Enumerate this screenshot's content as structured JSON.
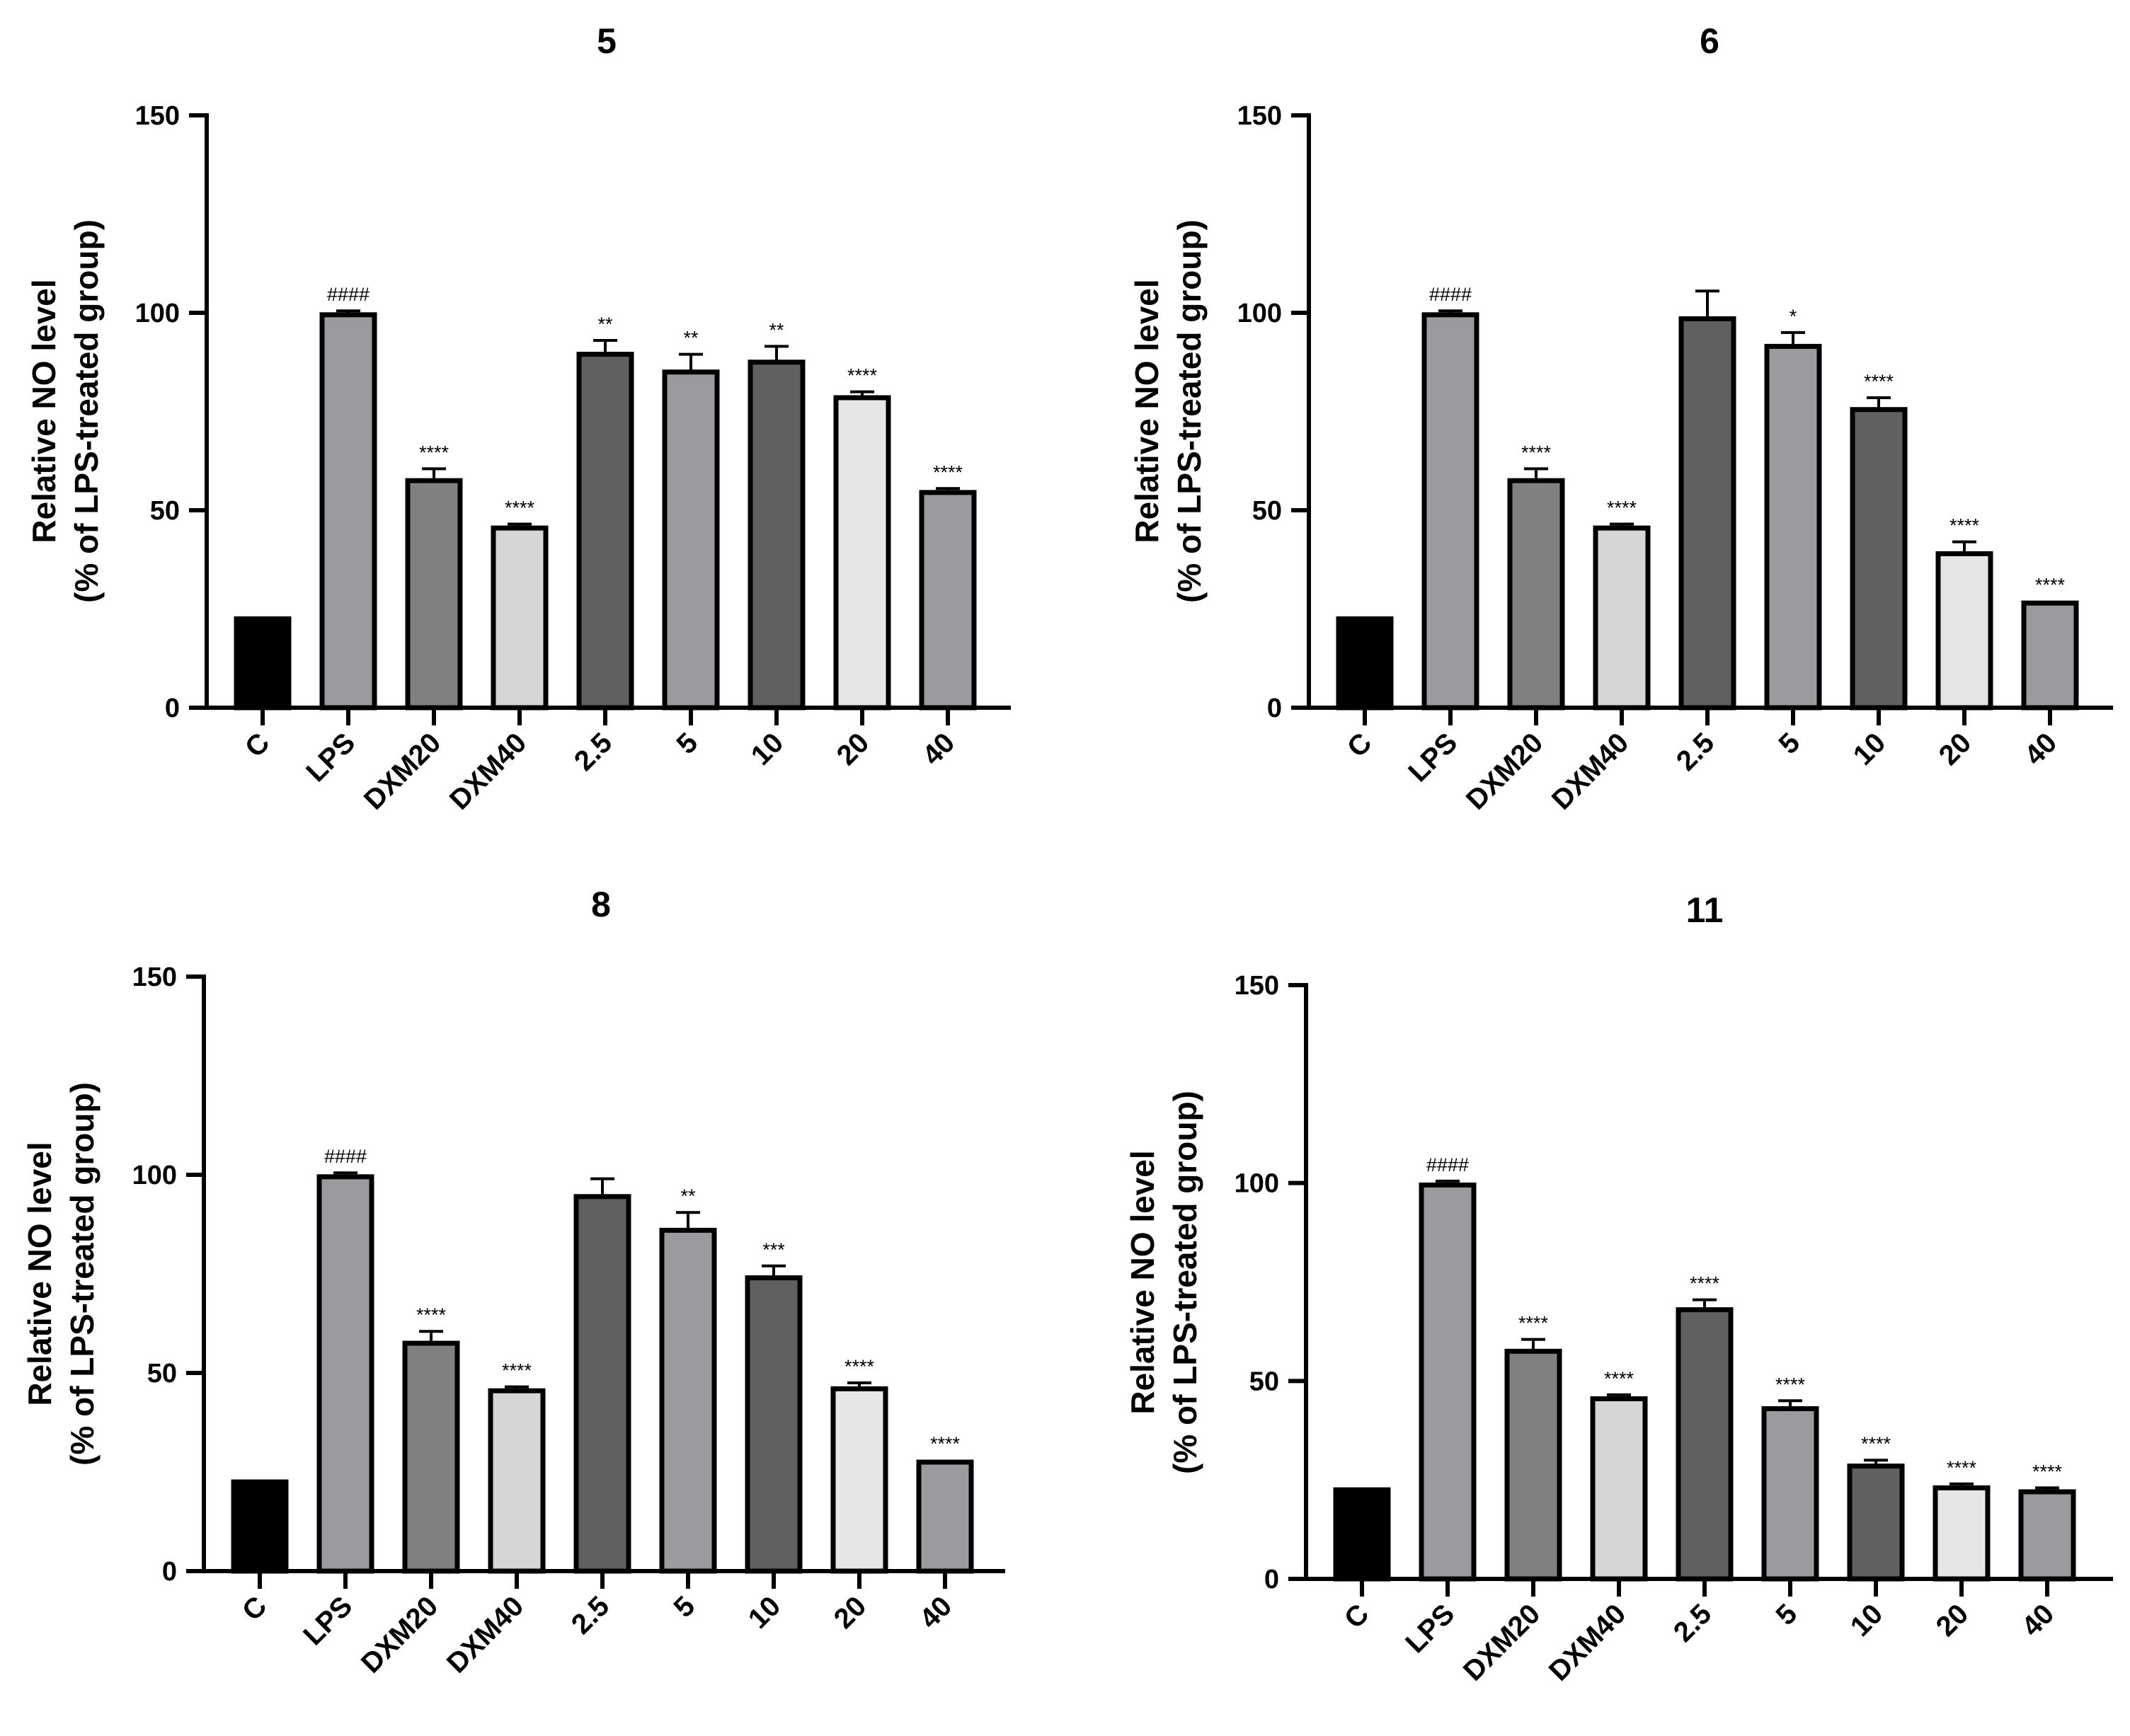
{
  "figure": {
    "colors": {
      "black": "#000000",
      "mid_gray": "#9b9b9f",
      "gray": "#808080",
      "light_gray": "#d6d6d6",
      "dark_gray": "#606060",
      "very_light_gray": "#e6e6e6"
    }
  },
  "chart_data": [
    {
      "type": "bar",
      "title": "5",
      "xlabel": "",
      "ylabel_line1": "Relative NO level",
      "ylabel_line2": "(% of LPS-treated group)",
      "ylim": [
        0,
        150
      ],
      "yticks": [
        "0",
        "50",
        "100",
        "150"
      ],
      "categories": [
        "C",
        "LPS",
        "DXM20",
        "DXM40",
        "2.5",
        "5",
        "10",
        "20",
        "40"
      ],
      "values": [
        22.5,
        99.5,
        57.5,
        45.5,
        89.5,
        85,
        87.5,
        78.5,
        54.5
      ],
      "errors": [
        0.5,
        1,
        3,
        1,
        3.5,
        4.5,
        4,
        1.5,
        1
      ],
      "significance": [
        "",
        "####",
        "****",
        "****",
        "**",
        "**",
        "**",
        "****",
        "****"
      ],
      "bar_colors": [
        "black",
        "mid_gray",
        "gray",
        "light_gray",
        "dark_gray",
        "mid_gray",
        "dark_gray",
        "very_light_gray",
        "mid_gray"
      ]
    },
    {
      "type": "bar",
      "title": "6",
      "xlabel": "",
      "ylabel_line1": "Relative NO level",
      "ylabel_line2": "(% of LPS-treated group)",
      "ylim": [
        0,
        150
      ],
      "yticks": [
        "0",
        "50",
        "100",
        "150"
      ],
      "categories": [
        "C",
        "LPS",
        "DXM20",
        "DXM40",
        "2.5",
        "5",
        "10",
        "20",
        "40"
      ],
      "values": [
        22.5,
        99.5,
        57.5,
        45.5,
        98.5,
        91.5,
        75.5,
        39,
        26.5
      ],
      "errors": [
        0.5,
        1,
        3,
        1,
        7,
        3.5,
        3,
        3,
        0.5
      ],
      "significance": [
        "",
        "####",
        "****",
        "****",
        "",
        "*",
        "****",
        "****",
        "****"
      ],
      "bar_colors": [
        "black",
        "mid_gray",
        "gray",
        "light_gray",
        "dark_gray",
        "mid_gray",
        "dark_gray",
        "very_light_gray",
        "mid_gray"
      ]
    },
    {
      "type": "bar",
      "title": "8",
      "xlabel": "",
      "ylabel_line1": "Relative NO level",
      "ylabel_line2": "(% of LPS-treated group)",
      "ylim": [
        0,
        150
      ],
      "yticks": [
        "0",
        "50",
        "100",
        "150"
      ],
      "categories": [
        "C",
        "LPS",
        "DXM20",
        "DXM40",
        "2.5",
        "5",
        "10",
        "20",
        "40"
      ],
      "values": [
        22.5,
        99.5,
        57.5,
        45.5,
        94.5,
        86,
        74,
        46,
        27.5
      ],
      "errors": [
        0.5,
        1,
        3,
        1,
        4.5,
        4.5,
        3,
        1.5,
        0.5
      ],
      "significance": [
        "",
        "####",
        "****",
        "****",
        "",
        "**",
        "***",
        "****",
        "****"
      ],
      "bar_colors": [
        "black",
        "mid_gray",
        "gray",
        "light_gray",
        "dark_gray",
        "mid_gray",
        "dark_gray",
        "very_light_gray",
        "mid_gray"
      ]
    },
    {
      "type": "bar",
      "title": "11",
      "xlabel": "",
      "ylabel_line1": "Relative NO level",
      "ylabel_line2": "(% of LPS-treated group)",
      "ylim": [
        0,
        150
      ],
      "yticks": [
        "0",
        "50",
        "100",
        "150"
      ],
      "categories": [
        "C",
        "LPS",
        "DXM20",
        "DXM40",
        "2.5",
        "5",
        "10",
        "20",
        "40"
      ],
      "values": [
        22.5,
        99.5,
        57.5,
        45.5,
        68,
        43,
        28.5,
        23,
        22
      ],
      "errors": [
        0.5,
        1,
        3,
        1,
        2.5,
        2,
        1.5,
        1,
        1
      ],
      "significance": [
        "",
        "####",
        "****",
        "****",
        "****",
        "****",
        "****",
        "****",
        "****"
      ],
      "bar_colors": [
        "black",
        "mid_gray",
        "gray",
        "light_gray",
        "dark_gray",
        "mid_gray",
        "dark_gray",
        "very_light_gray",
        "mid_gray"
      ]
    }
  ]
}
